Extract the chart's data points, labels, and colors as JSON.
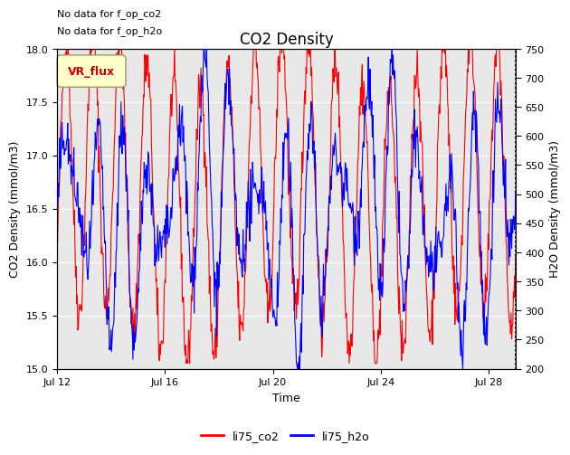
{
  "title": "CO2 Density",
  "xlabel": "Time",
  "ylabel_left": "CO2 Density (mmol/m3)",
  "ylabel_right": "H2O Density (mmol/m3)",
  "annotation_lines": [
    "No data for f_op_co2",
    "No data for f_op_h2o"
  ],
  "legend_box_label": "VR_flux",
  "legend_box_color": "#ffffcc",
  "legend_box_border": "#999966",
  "legend_box_text_color": "#cc0000",
  "legend_entries": [
    "li75_co2",
    "li75_h2o"
  ],
  "color_co2": "#ff0000",
  "color_h2o": "#0000ff",
  "ylim_left": [
    15.0,
    18.0
  ],
  "ylim_right": [
    200,
    750
  ],
  "yticks_left": [
    15.0,
    15.5,
    16.0,
    16.5,
    17.0,
    17.5,
    18.0
  ],
  "yticks_right": [
    200,
    250,
    300,
    350,
    400,
    450,
    500,
    550,
    600,
    650,
    700,
    750
  ],
  "xtick_days": [
    12,
    16,
    20,
    24,
    28
  ],
  "xtick_labels": [
    "Jul 12",
    "Jul 16",
    "Jul 20",
    "Jul 24",
    "Jul 28"
  ],
  "plot_bg_color": "#e8e8e8",
  "fig_bg_color": "#ffffff",
  "grid_color": "#ffffff",
  "annotation_fontsize": 8,
  "title_fontsize": 12,
  "axis_label_fontsize": 9,
  "tick_fontsize": 8,
  "legend_fontsize": 9,
  "line_width": 0.8
}
